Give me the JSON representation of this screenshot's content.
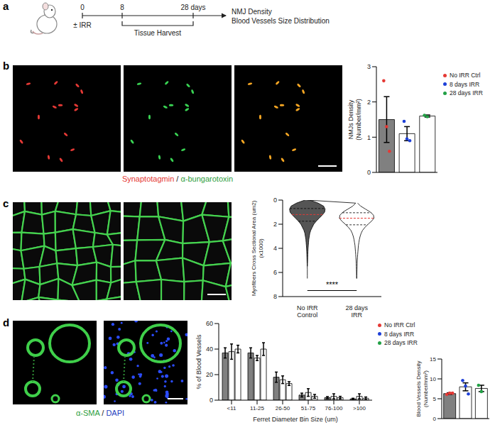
{
  "panel_labels": [
    "a",
    "b",
    "c",
    "d"
  ],
  "timeline": {
    "marks": [
      "0",
      "8",
      "28 days"
    ],
    "treatment": "± IRR",
    "window": "Tissue Harvest",
    "outcomes": [
      "NMJ Density",
      "Blood Vessels Size Distribution"
    ]
  },
  "captions": {
    "b": [
      {
        "text": "Synaptotagmin",
        "color": "#e53935"
      },
      {
        "text": " / ",
        "color": "#222222"
      },
      {
        "text": "α-bungarotoxin",
        "color": "#2e9e3e"
      }
    ],
    "d": [
      {
        "text": "α-SMA",
        "color": "#2e9e3e"
      },
      {
        "text": " / ",
        "color": "#222222"
      },
      {
        "text": "DAPI",
        "color": "#1f3fbf"
      }
    ]
  },
  "chart_data": [
    {
      "type": "bar",
      "ylabel": [
        "NMJs Density",
        "(Number/mm²)"
      ],
      "categories": [
        null
      ],
      "ylim": [
        0,
        3
      ],
      "yticks": [
        0,
        1,
        2,
        3
      ],
      "legend": "right",
      "tick_labels": "y",
      "series": [
        {
          "name": "No IRR Ctrl",
          "color": "#e53935",
          "values": [
            1.5
          ],
          "errors": [
            0.65
          ],
          "points": [
            [
              2.6,
              1.3,
              0.6
            ]
          ]
        },
        {
          "name": "8 days IRR",
          "color": "#1e40d8",
          "values": [
            1.1
          ],
          "errors": [
            0.2
          ],
          "points": [
            [
              1.45,
              0.95,
              0.9
            ]
          ]
        },
        {
          "name": "28 days IRR",
          "color": "#22a045",
          "values": [
            1.6
          ],
          "errors": [
            0.03
          ],
          "points": [
            [
              1.62,
              1.58
            ]
          ]
        }
      ]
    },
    {
      "type": "violin",
      "categories": [
        "No IRR Control",
        "28 days IRR"
      ],
      "ylabel": [
        "Myofibers Cross Sectional Area (um2)",
        "(x1000)"
      ],
      "ylim": [
        0,
        8
      ],
      "yticks": [
        0,
        2,
        4,
        6,
        8
      ],
      "density_y": [
        0,
        0.25,
        0.5,
        0.75,
        1,
        1.25,
        1.5,
        1.75,
        2,
        2.25,
        2.5,
        2.75,
        3,
        3.25,
        3.5,
        3.75,
        4,
        4.25,
        4.5,
        4.75,
        5,
        5.25,
        5.5,
        5.75,
        6,
        6.25,
        6.5
      ],
      "density": [
        [
          0.05,
          0.22,
          0.33,
          0.36,
          0.35,
          0.3,
          0.24,
          0.18,
          0.13,
          0.1,
          0.07,
          0.05,
          0.04,
          0.03,
          0.025,
          0.02,
          0.015,
          0.012,
          0.01,
          0.008,
          0.006,
          0.004,
          0.002,
          null,
          null,
          null,
          null
        ],
        [
          null,
          0.02,
          0.08,
          0.18,
          0.28,
          0.34,
          0.35,
          0.3,
          0.23,
          0.17,
          0.12,
          0.09,
          0.07,
          0.055,
          0.045,
          0.035,
          0.03,
          0.025,
          0.02,
          0.016,
          0.012,
          0.01,
          0.008,
          0.006,
          0.004,
          0.003,
          0.002
        ]
      ],
      "medians": [
        1.2,
        1.5
      ],
      "quartiles": [
        [
          0.7,
          1.75
        ],
        [
          1.05,
          2.05
        ]
      ],
      "colors": [
        "#555555",
        "#ffffff"
      ],
      "annotation": {
        "text": "****",
        "y": 7.5
      }
    },
    {
      "type": "bar",
      "ylabel": [
        "% of Blood Vessels"
      ],
      "xlabel": "Ferret Diameter Bin Size (um)",
      "categories": [
        "<11",
        "11-25",
        "26-50",
        "51-75",
        "76-100",
        ">100"
      ],
      "ylim": [
        0,
        60
      ],
      "yticks": [
        0,
        20,
        40,
        60
      ],
      "legend": "right",
      "series": [
        {
          "name": "No IRR Ctrl",
          "color": "#e53935",
          "values": [
            37,
            37,
            18,
            4,
            2,
            1
          ],
          "errors": [
            4,
            4,
            4,
            1.5,
            0.8,
            0.5
          ]
        },
        {
          "name": "8 days IRR",
          "color": "#1e40d8",
          "values": [
            38,
            33,
            16,
            6,
            3,
            3
          ],
          "errors": [
            6,
            2,
            3,
            3,
            2,
            2
          ]
        },
        {
          "name": "28 days IRR",
          "color": "#22a045",
          "values": [
            40,
            40,
            13,
            3,
            2,
            1.5
          ],
          "errors": [
            3,
            5,
            1.5,
            1.5,
            1,
            1
          ]
        }
      ]
    },
    {
      "type": "bar",
      "ylabel": [
        "Blood Vessels Density",
        "(Number/mm²)"
      ],
      "categories": [
        null
      ],
      "ylim": [
        0,
        15
      ],
      "yticks": [
        0,
        5,
        10,
        15
      ],
      "tick_labels": "y",
      "series": [
        {
          "name": "No IRR Ctrl",
          "color": "#e53935",
          "values": [
            6.3
          ],
          "errors": [
            0.2
          ],
          "points": [
            [
              6.1,
              6.4,
              6.4
            ]
          ]
        },
        {
          "name": "8 days IRR",
          "color": "#1e40d8",
          "values": [
            8.0
          ],
          "errors": [
            1.0
          ],
          "points": [
            [
              9.6,
              8.2,
              6.2
            ]
          ]
        },
        {
          "name": "28 days IRR",
          "color": "#22a045",
          "values": [
            7.6
          ],
          "errors": [
            0.8
          ],
          "points": [
            [
              8.4,
              6.8
            ]
          ]
        }
      ]
    }
  ]
}
